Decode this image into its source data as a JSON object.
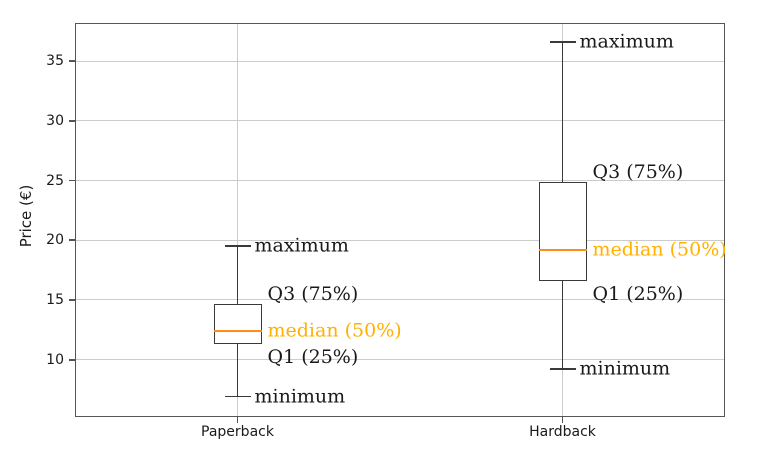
{
  "chart_data": {
    "type": "box",
    "title": "",
    "ylabel": "Price (€)",
    "categories": [
      "Paperback",
      "Hardback"
    ],
    "series": [
      {
        "name": "Paperback",
        "min": 6.9,
        "q1": 11.3,
        "median": 12.4,
        "q3": 14.7,
        "max": 19.5
      },
      {
        "name": "Hardback",
        "min": 9.2,
        "q1": 16.6,
        "median": 19.2,
        "q3": 24.9,
        "max": 36.6
      }
    ],
    "yticks": [
      10,
      15,
      20,
      25,
      30,
      35
    ],
    "ylim": [
      5.2,
      38.2
    ],
    "grid": true,
    "annotation_labels": [
      {
        "key": "max",
        "label": "maximum"
      },
      {
        "key": "q3",
        "label": "Q3 (75%)"
      },
      {
        "key": "median",
        "label": "median (50%)"
      },
      {
        "key": "q1",
        "label": "Q1 (25%)"
      },
      {
        "key": "min",
        "label": "minimum"
      }
    ],
    "colors": {
      "box_stroke": "#3a3a3a",
      "median_line": "#ff8c1a",
      "median_label": "#ffb000",
      "grid": "#cccccc",
      "spine": "#555555",
      "text": "#1a1a1a"
    }
  }
}
